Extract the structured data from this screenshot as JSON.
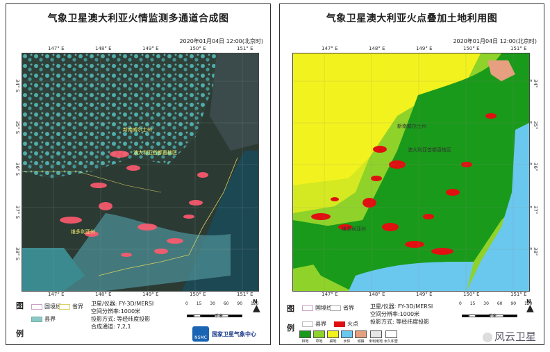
{
  "left": {
    "title": "气象卫星澳大利亚火情监测多通道合成图",
    "datetime": "2020年01月04日 12:00(北京时)",
    "top_ticks": [
      "147° E",
      "148° E",
      "149° E",
      "150° E",
      "151° E"
    ],
    "bottom_ticks": [
      "147° E",
      "148° E",
      "149° E",
      "150° E",
      "151° E"
    ],
    "side_ticks": [
      "34° S",
      "35° S",
      "36° S",
      "37° S",
      "38° S"
    ],
    "places": [
      "新南威尔士州",
      "澳大利亚首都直辖区",
      "维多利亚州"
    ],
    "legend_label_a": "图",
    "legend_label_b": "例",
    "legend": {
      "border": "国境线",
      "state": "省界",
      "county": "县界"
    },
    "info": [
      "卫星/仪器: FY-3D/MERSI",
      "空间分辨率:1000米",
      "投影方式: 等经纬度投影",
      "合成通道: 7,2,1"
    ],
    "scale_labels": [
      "0 15 30",
      "60",
      "90",
      "120"
    ],
    "scale_unit": "千米",
    "north": "N",
    "agency": "国家卫星气象中心",
    "agency_short": "NSMC"
  },
  "right": {
    "title": "气象卫星澳大利亚火点叠加土地利用图",
    "datetime": "2020年01月04日 12:00(北京时)",
    "top_ticks": [
      "147° E",
      "148° E",
      "149° E",
      "150° E",
      "151° E"
    ],
    "bottom_ticks": [
      "147° E",
      "148° E",
      "149° E",
      "150° E",
      "151° E"
    ],
    "side_ticks": [
      "34° S",
      "35° S",
      "36° S",
      "37° S",
      "38° S"
    ],
    "places": [
      "新南威尔士州",
      "澳大利亚首都直辖区",
      "维多利亚州"
    ],
    "legend_label_a": "图",
    "legend_label_b": "例",
    "legend": {
      "border": "国境线",
      "state": "省界",
      "county": "县界",
      "fire": "火点"
    },
    "info": [
      "卫星/仪器: FY-3D/MERSI",
      "空间分辨率:1000米",
      "投影方式: 等经纬度投影"
    ],
    "scale_labels": [
      "0 15 30",
      "60",
      "90",
      "120"
    ],
    "scale_unit": "千米",
    "north": "N",
    "landuse": [
      "林地",
      "草地",
      "耕地",
      "水体",
      "城镇",
      "未利用地",
      "水久积雪"
    ],
    "landuse_colors": [
      "#1a9a1a",
      "#8ed22a",
      "#f2f21e",
      "#6ac8ee",
      "#e6a080",
      "#e6e6e6",
      "#ffffff"
    ]
  },
  "watermark": "风云卫星"
}
